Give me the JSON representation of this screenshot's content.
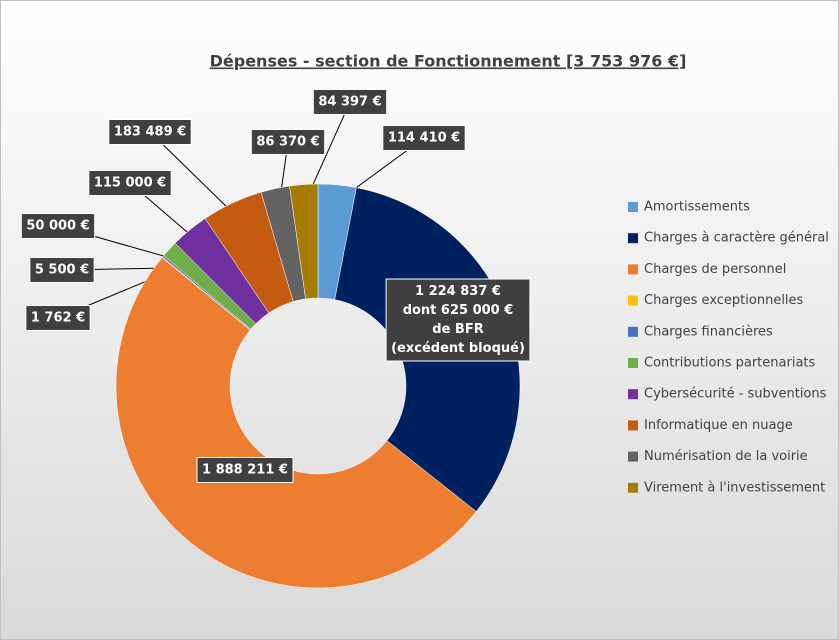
{
  "chart_data": {
    "type": "donut",
    "title": "Dépenses - section de Fonctionnement [3 753 976 €]",
    "categories": [
      "Amortissements",
      "Charges à caractère général",
      "Charges de personnel",
      "Charges exceptionnelles",
      "Charges financières",
      "Contributions partenariats",
      "Cybersécurité - subventions",
      "Informatique en nuage",
      "Numérisation de la voirie",
      "Virement à l'investissement"
    ],
    "values": [
      114410,
      1224837,
      1888211,
      1762,
      5500,
      50000,
      115000,
      183489,
      86370,
      84397
    ],
    "value_labels": [
      "114 410 €",
      "1 224 837 €",
      "1 888 211 €",
      "1 762 €",
      "5 500 €",
      "50 000 €",
      "115 000 €",
      "183 489 €",
      "86 370 €",
      "84 397 €"
    ],
    "annotation": [
      "dont 625 000 €",
      "de BFR",
      "(excédent bloqué)"
    ],
    "colors": [
      "#5b9bd5",
      "#002060",
      "#ed7d31",
      "#ffc000",
      "#4472c4",
      "#70ad47",
      "#7030a0",
      "#c55a11",
      "#636363",
      "#a57c00"
    ],
    "legend": "right"
  }
}
